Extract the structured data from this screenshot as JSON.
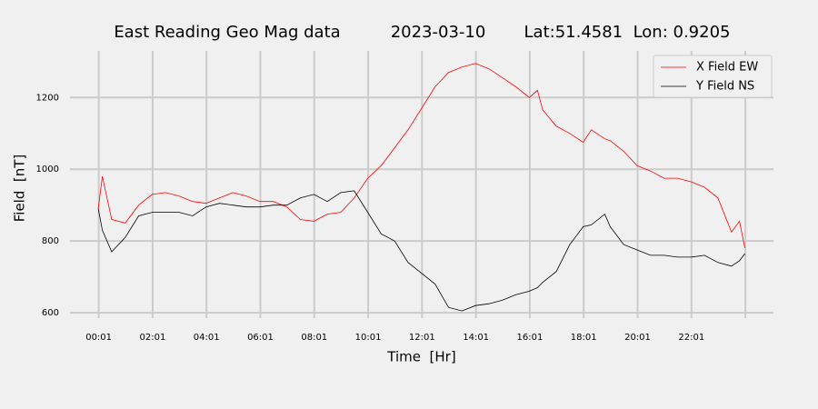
{
  "chart_data": {
    "type": "line",
    "title": "East Reading Geo Mag data",
    "date": "2023-03-10",
    "location": "Lat:51.4581  Lon: 0.9205",
    "x_label": "Time  [Hr]",
    "y_label": "Field  [nT]",
    "x": [
      0,
      0.15,
      0.5,
      1,
      1.5,
      2,
      2.5,
      3,
      3.5,
      4,
      4.5,
      5,
      5.5,
      6,
      6.5,
      7,
      7.5,
      8,
      8.5,
      9,
      9.5,
      10,
      10.5,
      11,
      11.5,
      12,
      12.5,
      13,
      13.5,
      14,
      14.5,
      15,
      15.5,
      16,
      16.3,
      16.5,
      17,
      17.5,
      18,
      18.3,
      18.8,
      19,
      19.5,
      20,
      20.5,
      21,
      21.5,
      22,
      22.5,
      23,
      23.5,
      23.8,
      24
    ],
    "series": [
      {
        "name": "X Field EW",
        "color": "#ff0000",
        "values": [
          890,
          980,
          860,
          850,
          900,
          930,
          935,
          925,
          910,
          905,
          920,
          935,
          925,
          910,
          910,
          895,
          860,
          855,
          875,
          880,
          920,
          975,
          1010,
          1060,
          1110,
          1170,
          1230,
          1270,
          1285,
          1295,
          1280,
          1255,
          1230,
          1200,
          1220,
          1165,
          1120,
          1100,
          1075,
          1110,
          1085,
          1080,
          1050,
          1010,
          995,
          975,
          975,
          965,
          950,
          920,
          825,
          855,
          780
        ]
      },
      {
        "name": "Y Field NS",
        "color": "#000000",
        "values": [
          890,
          830,
          770,
          810,
          870,
          880,
          880,
          880,
          870,
          895,
          905,
          900,
          895,
          895,
          900,
          900,
          920,
          930,
          910,
          935,
          940,
          880,
          820,
          800,
          740,
          710,
          680,
          615,
          605,
          620,
          625,
          635,
          650,
          660,
          670,
          685,
          715,
          790,
          840,
          845,
          875,
          840,
          790,
          775,
          760,
          760,
          755,
          755,
          760,
          740,
          730,
          745,
          765
        ]
      }
    ],
    "xlim": [
      -1.05,
      25.06
    ],
    "ylim": [
      585,
      1330
    ],
    "xticks": [
      {
        "value": 0.0167,
        "label": "00:01"
      },
      {
        "value": 2.0167,
        "label": "02:01"
      },
      {
        "value": 4.0167,
        "label": "04:01"
      },
      {
        "value": 6.0167,
        "label": "06:01"
      },
      {
        "value": 8.0167,
        "label": "08:01"
      },
      {
        "value": 10.0167,
        "label": "10:01"
      },
      {
        "value": 12.0167,
        "label": "12:01"
      },
      {
        "value": 14.0167,
        "label": "14:01"
      },
      {
        "value": 16.0167,
        "label": "16:01"
      },
      {
        "value": 18.0167,
        "label": "18:01"
      },
      {
        "value": 20.0167,
        "label": "20:01"
      },
      {
        "value": 22.0167,
        "label": "22:01"
      },
      {
        "value": 24.0167,
        "label": null
      }
    ],
    "yticks": [
      600,
      800,
      1000,
      1200
    ],
    "grid": true,
    "legend": "upper right"
  }
}
